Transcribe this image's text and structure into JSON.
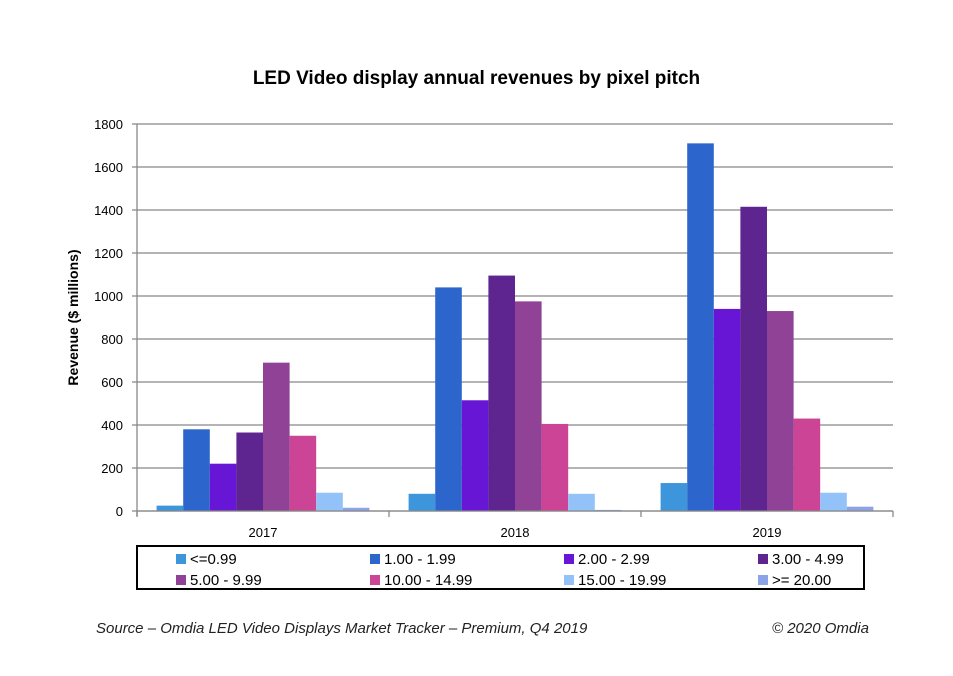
{
  "chart_data": {
    "type": "bar",
    "title": "LED Video display annual revenues by pixel pitch",
    "xlabel": "",
    "ylabel": "Revenue ($ millions)",
    "ylim": [
      0,
      1800
    ],
    "yticks": [
      0,
      200,
      400,
      600,
      800,
      1000,
      1200,
      1400,
      1600,
      1800
    ],
    "grid": true,
    "legend_position": "bottom",
    "categories": [
      "2017",
      "2018",
      "2019"
    ],
    "series": [
      {
        "name": "<=0.99",
        "color": "#3d96dc",
        "values": [
          25,
          80,
          130
        ]
      },
      {
        "name": "1.00 - 1.99",
        "color": "#2c66cc",
        "values": [
          380,
          1040,
          1710
        ]
      },
      {
        "name": "2.00 - 2.99",
        "color": "#6616d4",
        "values": [
          220,
          515,
          940
        ]
      },
      {
        "name": "3.00 - 4.99",
        "color": "#5e248f",
        "values": [
          365,
          1095,
          1415
        ]
      },
      {
        "name": "5.00 - 9.99",
        "color": "#8f4296",
        "values": [
          690,
          975,
          930
        ]
      },
      {
        "name": "10.00 - 14.99",
        "color": "#cc4495",
        "values": [
          350,
          405,
          430
        ]
      },
      {
        "name": "15.00 - 19.99",
        "color": "#92c2f7",
        "values": [
          85,
          80,
          85
        ]
      },
      {
        "name": ">= 20.00",
        "color": "#8da3e8",
        "values": [
          15,
          5,
          20
        ]
      }
    ]
  },
  "footer": {
    "source": "Source – Omdia LED Video Displays Market Tracker – Premium, Q4 2019",
    "copyright": "© 2020 Omdia"
  }
}
